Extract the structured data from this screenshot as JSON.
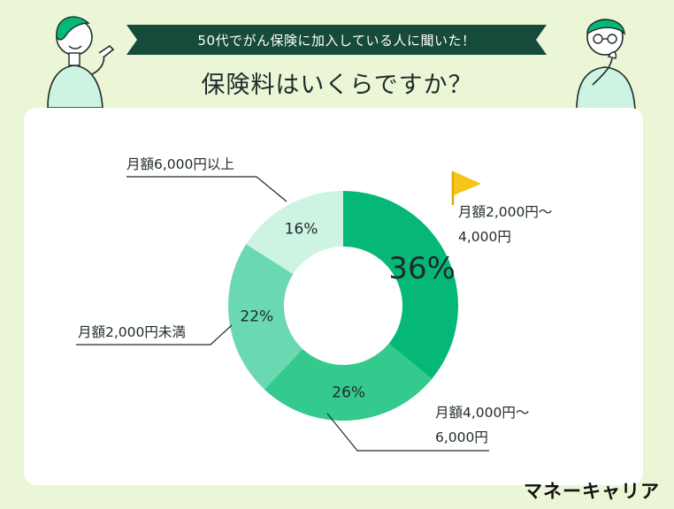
{
  "banner": "50代でがん保険に加入している人に聞いた！",
  "title": "保険料はいくらですか？",
  "brand": "マネーキャリア",
  "icons": [
    "woman-pointing-illustration",
    "man-thinking-illustration",
    "flag-icon"
  ],
  "colors": {
    "background": "#eaf6d6",
    "banner": "#164a3a",
    "slice_2000_4000": "#05b878",
    "slice_4000_6000": "#34c98d",
    "slice_under_2000": "#6ad8b0",
    "slice_over_6000": "#cdf3e3",
    "flag": "#f5c518"
  },
  "chart_data": {
    "type": "pie",
    "donut": true,
    "title": "保険料はいくらですか？",
    "slices": [
      {
        "label": "月額2,000円〜4,000円",
        "line1": "月額2,000円〜",
        "line2": "4,000円",
        "value": 36,
        "value_label": "36%",
        "highlight": true
      },
      {
        "label": "月額4,000円〜6,000円",
        "line1": "月額4,000円〜",
        "line2": "6,000円",
        "value": 26,
        "value_label": "26%"
      },
      {
        "label": "月額2,000円未満",
        "line1": "月額2,000円未満",
        "line2": "",
        "value": 22,
        "value_label": "22%"
      },
      {
        "label": "月額6,000円以上",
        "line1": "月額6,000円以上",
        "line2": "",
        "value": 16,
        "value_label": "16%"
      }
    ]
  }
}
